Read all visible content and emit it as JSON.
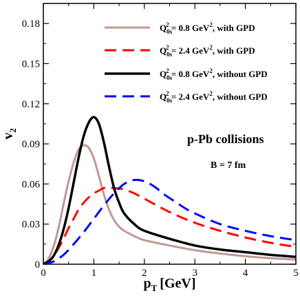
{
  "chart_data": {
    "type": "line",
    "title": "",
    "xlabel": "p",
    "xlabel_sub": "T",
    "xlabel_unit": "[GeV]",
    "ylabel": "v",
    "ylabel_sub": "2",
    "xlim": [
      0,
      5
    ],
    "ylim": [
      0,
      0.195
    ],
    "xticks": [
      0,
      1,
      2,
      3,
      4,
      5
    ],
    "xtick_labels": [
      "0",
      "1",
      "2",
      "3",
      "4",
      "5"
    ],
    "yticks": [
      0,
      0.03,
      0.06,
      0.09,
      0.12,
      0.15,
      0.18
    ],
    "ytick_labels": [
      "0",
      "0.03",
      "0.06",
      "0.09",
      "0.12",
      "0.15",
      "0.18"
    ],
    "grid": false,
    "legend_position": "top-right",
    "annotations": [
      "p-Pb collisions",
      "B = 7 fm"
    ],
    "series": [
      {
        "legend": {
          "pre": "Q",
          "sub": "0s",
          "sup1": "2",
          "mid": " = 0.8 GeV",
          "sup2": "2",
          "post": ", with GPD"
        },
        "color": "#c09890",
        "dash": "solid",
        "width": 3,
        "x": [
          0,
          0.1,
          0.2,
          0.3,
          0.4,
          0.5,
          0.6,
          0.7,
          0.8,
          0.9,
          1.0,
          1.1,
          1.2,
          1.3,
          1.4,
          1.5,
          1.6,
          1.8,
          2.0,
          2.5,
          3.0,
          3.5,
          4.0,
          4.5,
          5.0
        ],
        "y": [
          0,
          0.004,
          0.013,
          0.027,
          0.045,
          0.062,
          0.076,
          0.086,
          0.089,
          0.087,
          0.079,
          0.066,
          0.052,
          0.041,
          0.033,
          0.028,
          0.025,
          0.021,
          0.018,
          0.014,
          0.0105,
          0.008,
          0.006,
          0.0045,
          0.0035
        ]
      },
      {
        "legend": {
          "pre": "Q",
          "sub": "0s",
          "sup1": "2",
          "mid": " = 2.4 GeV",
          "sup2": "2",
          "post": ", with GPD"
        },
        "color": "#ff0000",
        "dash": "dashed",
        "width": 3,
        "x": [
          0,
          0.1,
          0.2,
          0.3,
          0.4,
          0.5,
          0.6,
          0.7,
          0.8,
          0.9,
          1.0,
          1.1,
          1.2,
          1.3,
          1.4,
          1.5,
          1.6,
          1.8,
          2.0,
          2.5,
          3.0,
          3.5,
          4.0,
          4.5,
          5.0
        ],
        "y": [
          0,
          0.002,
          0.006,
          0.012,
          0.019,
          0.027,
          0.034,
          0.041,
          0.046,
          0.05,
          0.053,
          0.055,
          0.057,
          0.057,
          0.057,
          0.0565,
          0.056,
          0.053,
          0.049,
          0.039,
          0.031,
          0.025,
          0.02,
          0.016,
          0.013
        ]
      },
      {
        "legend": {
          "pre": "Q",
          "sub": "0s",
          "sup1": "2",
          "mid": " = 0.8 GeV",
          "sup2": "2",
          "post": ", without GPD"
        },
        "color": "#000000",
        "dash": "solid",
        "width": 3.5,
        "x": [
          0,
          0.1,
          0.2,
          0.3,
          0.4,
          0.5,
          0.6,
          0.7,
          0.8,
          0.9,
          1.0,
          1.1,
          1.2,
          1.3,
          1.4,
          1.5,
          1.6,
          1.8,
          2.0,
          2.5,
          3.0,
          3.5,
          4.0,
          4.5,
          5.0
        ],
        "y": [
          0,
          0.002,
          0.006,
          0.014,
          0.026,
          0.042,
          0.061,
          0.08,
          0.096,
          0.106,
          0.11,
          0.105,
          0.091,
          0.073,
          0.057,
          0.046,
          0.038,
          0.03,
          0.025,
          0.019,
          0.014,
          0.011,
          0.009,
          0.007,
          0.0055
        ]
      },
      {
        "legend": {
          "pre": "Q",
          "sub": "0s",
          "sup1": "2",
          "mid": " = 2.4 GeV",
          "sup2": "2",
          "post": ", without GPD"
        },
        "color": "#0000ff",
        "dash": "dashed",
        "width": 3,
        "x": [
          0,
          0.2,
          0.4,
          0.6,
          0.8,
          1.0,
          1.2,
          1.4,
          1.6,
          1.8,
          2.0,
          2.2,
          2.4,
          2.6,
          2.8,
          3.0,
          3.5,
          4.0,
          4.5,
          5.0
        ],
        "y": [
          0,
          0.002,
          0.007,
          0.015,
          0.024,
          0.034,
          0.044,
          0.053,
          0.06,
          0.063,
          0.062,
          0.058,
          0.052,
          0.047,
          0.042,
          0.038,
          0.03,
          0.025,
          0.021,
          0.018
        ]
      }
    ]
  }
}
